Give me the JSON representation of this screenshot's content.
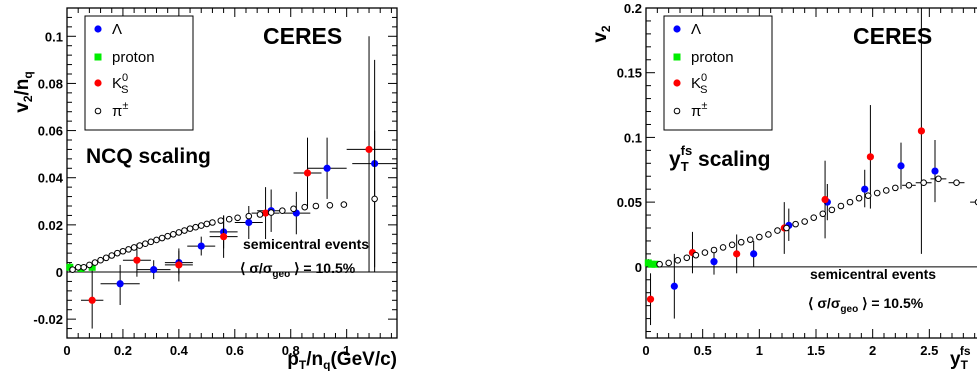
{
  "chart_data": [
    {
      "type": "scatter",
      "xlabel_main": "p",
      "xlabel_sub": "T",
      "xlabel_rest": "/n",
      "xlabel_sub2": "q",
      "xlabel_tail": "(GeV/c)",
      "ylabel_main": "v",
      "ylabel_sub": "2",
      "ylabel_rest": "/n",
      "ylabel_sub2": "q",
      "xlim": [
        0,
        1.18
      ],
      "ylim": [
        -0.028,
        0.112
      ],
      "xticks": [
        "0",
        "0.2",
        "0.4",
        "0.6",
        "0.8",
        "1"
      ],
      "yticks": [
        "-0.02",
        "0",
        "0.02",
        "0.04",
        "0.06",
        "0.08",
        "0.1"
      ],
      "xtick_values": [
        0,
        0.2,
        0.4,
        0.6,
        0.8,
        1.0
      ],
      "ytick_values": [
        -0.02,
        0,
        0.02,
        0.04,
        0.06,
        0.08,
        0.1
      ],
      "experiment": "CERES",
      "scaling_label": "NCQ scaling",
      "events_label": "semicentral events",
      "centrality_prefix": "⟨ σ/σ",
      "centrality_sub": "geo",
      "centrality_suffix": " ⟩ = 10.5%",
      "legend": [
        {
          "label": "Λ",
          "color": "#0000ff",
          "marker": "dot"
        },
        {
          "label": "proton",
          "color": "#00ee00",
          "marker": "square"
        },
        {
          "label": "K",
          "sup": "0",
          "sub": "S",
          "color": "#ff0000",
          "marker": "dot"
        },
        {
          "label": "π",
          "sup": "±",
          "color": "#000000",
          "marker": "open"
        }
      ],
      "series": [
        {
          "name": "Λ",
          "color": "#0000ff",
          "marker": "dot",
          "points": [
            {
              "x": 0.19,
              "y": -0.005,
              "xerr": 0.07,
              "ylo": -0.014,
              "yhi": 0.003
            },
            {
              "x": 0.31,
              "y": 0.001,
              "xerr": 0.06,
              "ylo": -0.003,
              "yhi": 0.005
            },
            {
              "x": 0.4,
              "y": 0.004,
              "xerr": 0.05,
              "ylo": -0.001,
              "yhi": 0.009
            },
            {
              "x": 0.48,
              "y": 0.011,
              "xerr": 0.05,
              "ylo": 0.007,
              "yhi": 0.015
            },
            {
              "x": 0.56,
              "y": 0.017,
              "xerr": 0.05,
              "ylo": 0.01,
              "yhi": 0.024
            },
            {
              "x": 0.65,
              "y": 0.021,
              "xerr": 0.05,
              "ylo": 0.014,
              "yhi": 0.028
            },
            {
              "x": 0.73,
              "y": 0.026,
              "xerr": 0.05,
              "ylo": 0.017,
              "yhi": 0.035
            },
            {
              "x": 0.82,
              "y": 0.025,
              "xerr": 0.05,
              "ylo": 0.016,
              "yhi": 0.034
            },
            {
              "x": 0.93,
              "y": 0.044,
              "xerr": 0.07,
              "ylo": 0.031,
              "yhi": 0.057
            },
            {
              "x": 1.1,
              "y": 0.046,
              "xerr": 0.08,
              "ylo": 0.002,
              "yhi": 0.09
            }
          ]
        },
        {
          "name": "proton",
          "color": "#00ee00",
          "marker": "square",
          "points": [
            {
              "x": 0.01,
              "y": 0.002,
              "xerr": 0.0,
              "ylo": 0.0,
              "yhi": 0.004
            },
            {
              "x": 0.05,
              "y": 0.0015,
              "xerr": 0.0,
              "ylo": 0.0,
              "yhi": 0.003
            },
            {
              "x": 0.09,
              "y": 0.002,
              "xerr": 0.0,
              "ylo": 0.0,
              "yhi": 0.004
            }
          ]
        },
        {
          "name": "K0S",
          "color": "#ff0000",
          "marker": "dot",
          "points": [
            {
              "x": 0.09,
              "y": -0.012,
              "xerr": 0.04,
              "ylo": -0.024,
              "yhi": 0.0
            },
            {
              "x": 0.25,
              "y": 0.005,
              "xerr": 0.05,
              "ylo": -0.002,
              "yhi": 0.012
            },
            {
              "x": 0.4,
              "y": 0.003,
              "xerr": 0.05,
              "ylo": -0.004,
              "yhi": 0.01
            },
            {
              "x": 0.56,
              "y": 0.015,
              "xerr": 0.05,
              "ylo": 0.006,
              "yhi": 0.024
            },
            {
              "x": 0.71,
              "y": 0.025,
              "xerr": 0.05,
              "ylo": 0.014,
              "yhi": 0.036
            },
            {
              "x": 0.86,
              "y": 0.042,
              "xerr": 0.05,
              "ylo": 0.027,
              "yhi": 0.057
            },
            {
              "x": 1.08,
              "y": 0.052,
              "xerr": 0.08,
              "ylo": 0.0,
              "yhi": 0.1
            }
          ]
        },
        {
          "name": "π±",
          "color": "#000000",
          "marker": "open",
          "points": [
            {
              "x": 0.02,
              "y": 0.001
            },
            {
              "x": 0.04,
              "y": 0.002
            },
            {
              "x": 0.06,
              "y": 0.002
            },
            {
              "x": 0.08,
              "y": 0.003
            },
            {
              "x": 0.1,
              "y": 0.004
            },
            {
              "x": 0.12,
              "y": 0.005
            },
            {
              "x": 0.14,
              "y": 0.006
            },
            {
              "x": 0.16,
              "y": 0.007
            },
            {
              "x": 0.18,
              "y": 0.008
            },
            {
              "x": 0.2,
              "y": 0.0088
            },
            {
              "x": 0.22,
              "y": 0.0096
            },
            {
              "x": 0.24,
              "y": 0.0104
            },
            {
              "x": 0.26,
              "y": 0.0112
            },
            {
              "x": 0.28,
              "y": 0.012
            },
            {
              "x": 0.3,
              "y": 0.0128
            },
            {
              "x": 0.32,
              "y": 0.0136
            },
            {
              "x": 0.34,
              "y": 0.0144
            },
            {
              "x": 0.36,
              "y": 0.0152
            },
            {
              "x": 0.38,
              "y": 0.016
            },
            {
              "x": 0.4,
              "y": 0.0168
            },
            {
              "x": 0.42,
              "y": 0.0176
            },
            {
              "x": 0.44,
              "y": 0.0184
            },
            {
              "x": 0.46,
              "y": 0.019
            },
            {
              "x": 0.48,
              "y": 0.0197
            },
            {
              "x": 0.5,
              "y": 0.0204
            },
            {
              "x": 0.52,
              "y": 0.021
            },
            {
              "x": 0.55,
              "y": 0.0218
            },
            {
              "x": 0.58,
              "y": 0.0224
            },
            {
              "x": 0.61,
              "y": 0.023
            },
            {
              "x": 0.65,
              "y": 0.0237
            },
            {
              "x": 0.69,
              "y": 0.0244
            },
            {
              "x": 0.73,
              "y": 0.0252
            },
            {
              "x": 0.77,
              "y": 0.026
            },
            {
              "x": 0.81,
              "y": 0.0268
            },
            {
              "x": 0.85,
              "y": 0.0275
            },
            {
              "x": 0.89,
              "y": 0.028
            },
            {
              "x": 0.94,
              "y": 0.0283
            },
            {
              "x": 0.99,
              "y": 0.0286
            },
            {
              "x": 1.1,
              "y": 0.031,
              "ylo": 0.0,
              "yhi": 0.06
            }
          ]
        }
      ]
    },
    {
      "type": "scatter",
      "xlabel_main": "y",
      "xlabel_sub": "T",
      "xlabel_sup": "fs",
      "ylabel_main": "v",
      "ylabel_sub": "2",
      "xlim": [
        0,
        3.0
      ],
      "ylim": [
        -0.055,
        0.2
      ],
      "xticks": [
        "0",
        "0.5",
        "1",
        "1.5",
        "2",
        "2.5"
      ],
      "yticks": [
        "0",
        "0.05",
        "0.1",
        "0.15",
        "0.2"
      ],
      "xtick_values": [
        0,
        0.5,
        1.0,
        1.5,
        2.0,
        2.5
      ],
      "ytick_values": [
        0,
        0.05,
        0.1,
        0.15,
        0.2
      ],
      "experiment": "CERES",
      "scaling_label_main": "y",
      "scaling_label_sub": "T",
      "scaling_label_sup": "fs",
      "scaling_label_rest": " scaling",
      "events_label": "semicentral events",
      "centrality_prefix": "⟨ σ/σ",
      "centrality_sub": "geo",
      "centrality_suffix": " ⟩ = 10.5%",
      "legend": [
        {
          "label": "Λ",
          "color": "#0000ff",
          "marker": "dot"
        },
        {
          "label": "proton",
          "color": "#00ee00",
          "marker": "square"
        },
        {
          "label": "K",
          "sup": "0",
          "sub": "S",
          "color": "#ff0000",
          "marker": "dot"
        },
        {
          "label": "π",
          "sup": "±",
          "color": "#000000",
          "marker": "open"
        }
      ],
      "series": [
        {
          "name": "Λ",
          "color": "#0000ff",
          "marker": "dot",
          "points": [
            {
              "x": 0.25,
              "y": -0.015,
              "ylo": -0.04,
              "yhi": 0.01
            },
            {
              "x": 0.6,
              "y": 0.004,
              "ylo": -0.006,
              "yhi": 0.014
            },
            {
              "x": 0.95,
              "y": 0.01,
              "ylo": 0.0,
              "yhi": 0.02
            },
            {
              "x": 1.26,
              "y": 0.032,
              "ylo": 0.02,
              "yhi": 0.045
            },
            {
              "x": 1.6,
              "y": 0.05,
              "ylo": 0.036,
              "yhi": 0.064
            },
            {
              "x": 1.93,
              "y": 0.06,
              "ylo": 0.046,
              "yhi": 0.075
            },
            {
              "x": 2.25,
              "y": 0.078,
              "ylo": 0.06,
              "yhi": 0.096
            },
            {
              "x": 2.55,
              "y": 0.074,
              "ylo": 0.05,
              "yhi": 0.098
            }
          ]
        },
        {
          "name": "proton",
          "color": "#00ee00",
          "marker": "square",
          "points": [
            {
              "x": 0.02,
              "y": 0.003,
              "ylo": 0.0,
              "yhi": 0.006
            },
            {
              "x": 0.05,
              "y": 0.002,
              "ylo": 0.0,
              "yhi": 0.004
            },
            {
              "x": 0.08,
              "y": 0.002,
              "ylo": 0.0,
              "yhi": 0.004
            }
          ]
        },
        {
          "name": "K0S",
          "color": "#ff0000",
          "marker": "dot",
          "points": [
            {
              "x": 0.04,
              "y": -0.025,
              "ylo": -0.045,
              "yhi": -0.005
            },
            {
              "x": 0.41,
              "y": 0.011,
              "ylo": -0.005,
              "yhi": 0.027
            },
            {
              "x": 0.8,
              "y": 0.01,
              "ylo": -0.005,
              "yhi": 0.025
            },
            {
              "x": 1.22,
              "y": 0.03,
              "ylo": 0.01,
              "yhi": 0.05
            },
            {
              "x": 1.58,
              "y": 0.052,
              "ylo": 0.022,
              "yhi": 0.082
            },
            {
              "x": 1.98,
              "y": 0.085,
              "ylo": 0.045,
              "yhi": 0.125
            },
            {
              "x": 2.43,
              "y": 0.105,
              "ylo": 0.01,
              "yhi": 0.2
            }
          ]
        },
        {
          "name": "π±",
          "color": "#000000",
          "marker": "open",
          "points": [
            {
              "x": 0.12,
              "y": 0.002
            },
            {
              "x": 0.2,
              "y": 0.003
            },
            {
              "x": 0.28,
              "y": 0.005
            },
            {
              "x": 0.36,
              "y": 0.007
            },
            {
              "x": 0.44,
              "y": 0.009
            },
            {
              "x": 0.52,
              "y": 0.011
            },
            {
              "x": 0.6,
              "y": 0.013
            },
            {
              "x": 0.68,
              "y": 0.015
            },
            {
              "x": 0.76,
              "y": 0.017
            },
            {
              "x": 0.84,
              "y": 0.019
            },
            {
              "x": 0.92,
              "y": 0.021
            },
            {
              "x": 1.0,
              "y": 0.023
            },
            {
              "x": 1.08,
              "y": 0.025
            },
            {
              "x": 1.16,
              "y": 0.028
            },
            {
              "x": 1.24,
              "y": 0.03
            },
            {
              "x": 1.32,
              "y": 0.033
            },
            {
              "x": 1.4,
              "y": 0.035
            },
            {
              "x": 1.48,
              "y": 0.038
            },
            {
              "x": 1.56,
              "y": 0.041
            },
            {
              "x": 1.64,
              "y": 0.044
            },
            {
              "x": 1.72,
              "y": 0.047
            },
            {
              "x": 1.8,
              "y": 0.05
            },
            {
              "x": 1.88,
              "y": 0.053
            },
            {
              "x": 1.96,
              "y": 0.055
            },
            {
              "x": 2.04,
              "y": 0.057
            },
            {
              "x": 2.12,
              "y": 0.059
            },
            {
              "x": 2.2,
              "y": 0.061
            },
            {
              "x": 2.32,
              "y": 0.063,
              "xerr": 0.06
            },
            {
              "x": 2.45,
              "y": 0.065,
              "xerr": 0.07
            },
            {
              "x": 2.58,
              "y": 0.068,
              "xerr": 0.07
            },
            {
              "x": 2.74,
              "y": 0.065,
              "xerr": 0.07
            },
            {
              "x": 2.93,
              "y": 0.05,
              "xerr": 0.07,
              "ylo": 0.04,
              "yhi": 0.06
            }
          ]
        }
      ]
    }
  ]
}
